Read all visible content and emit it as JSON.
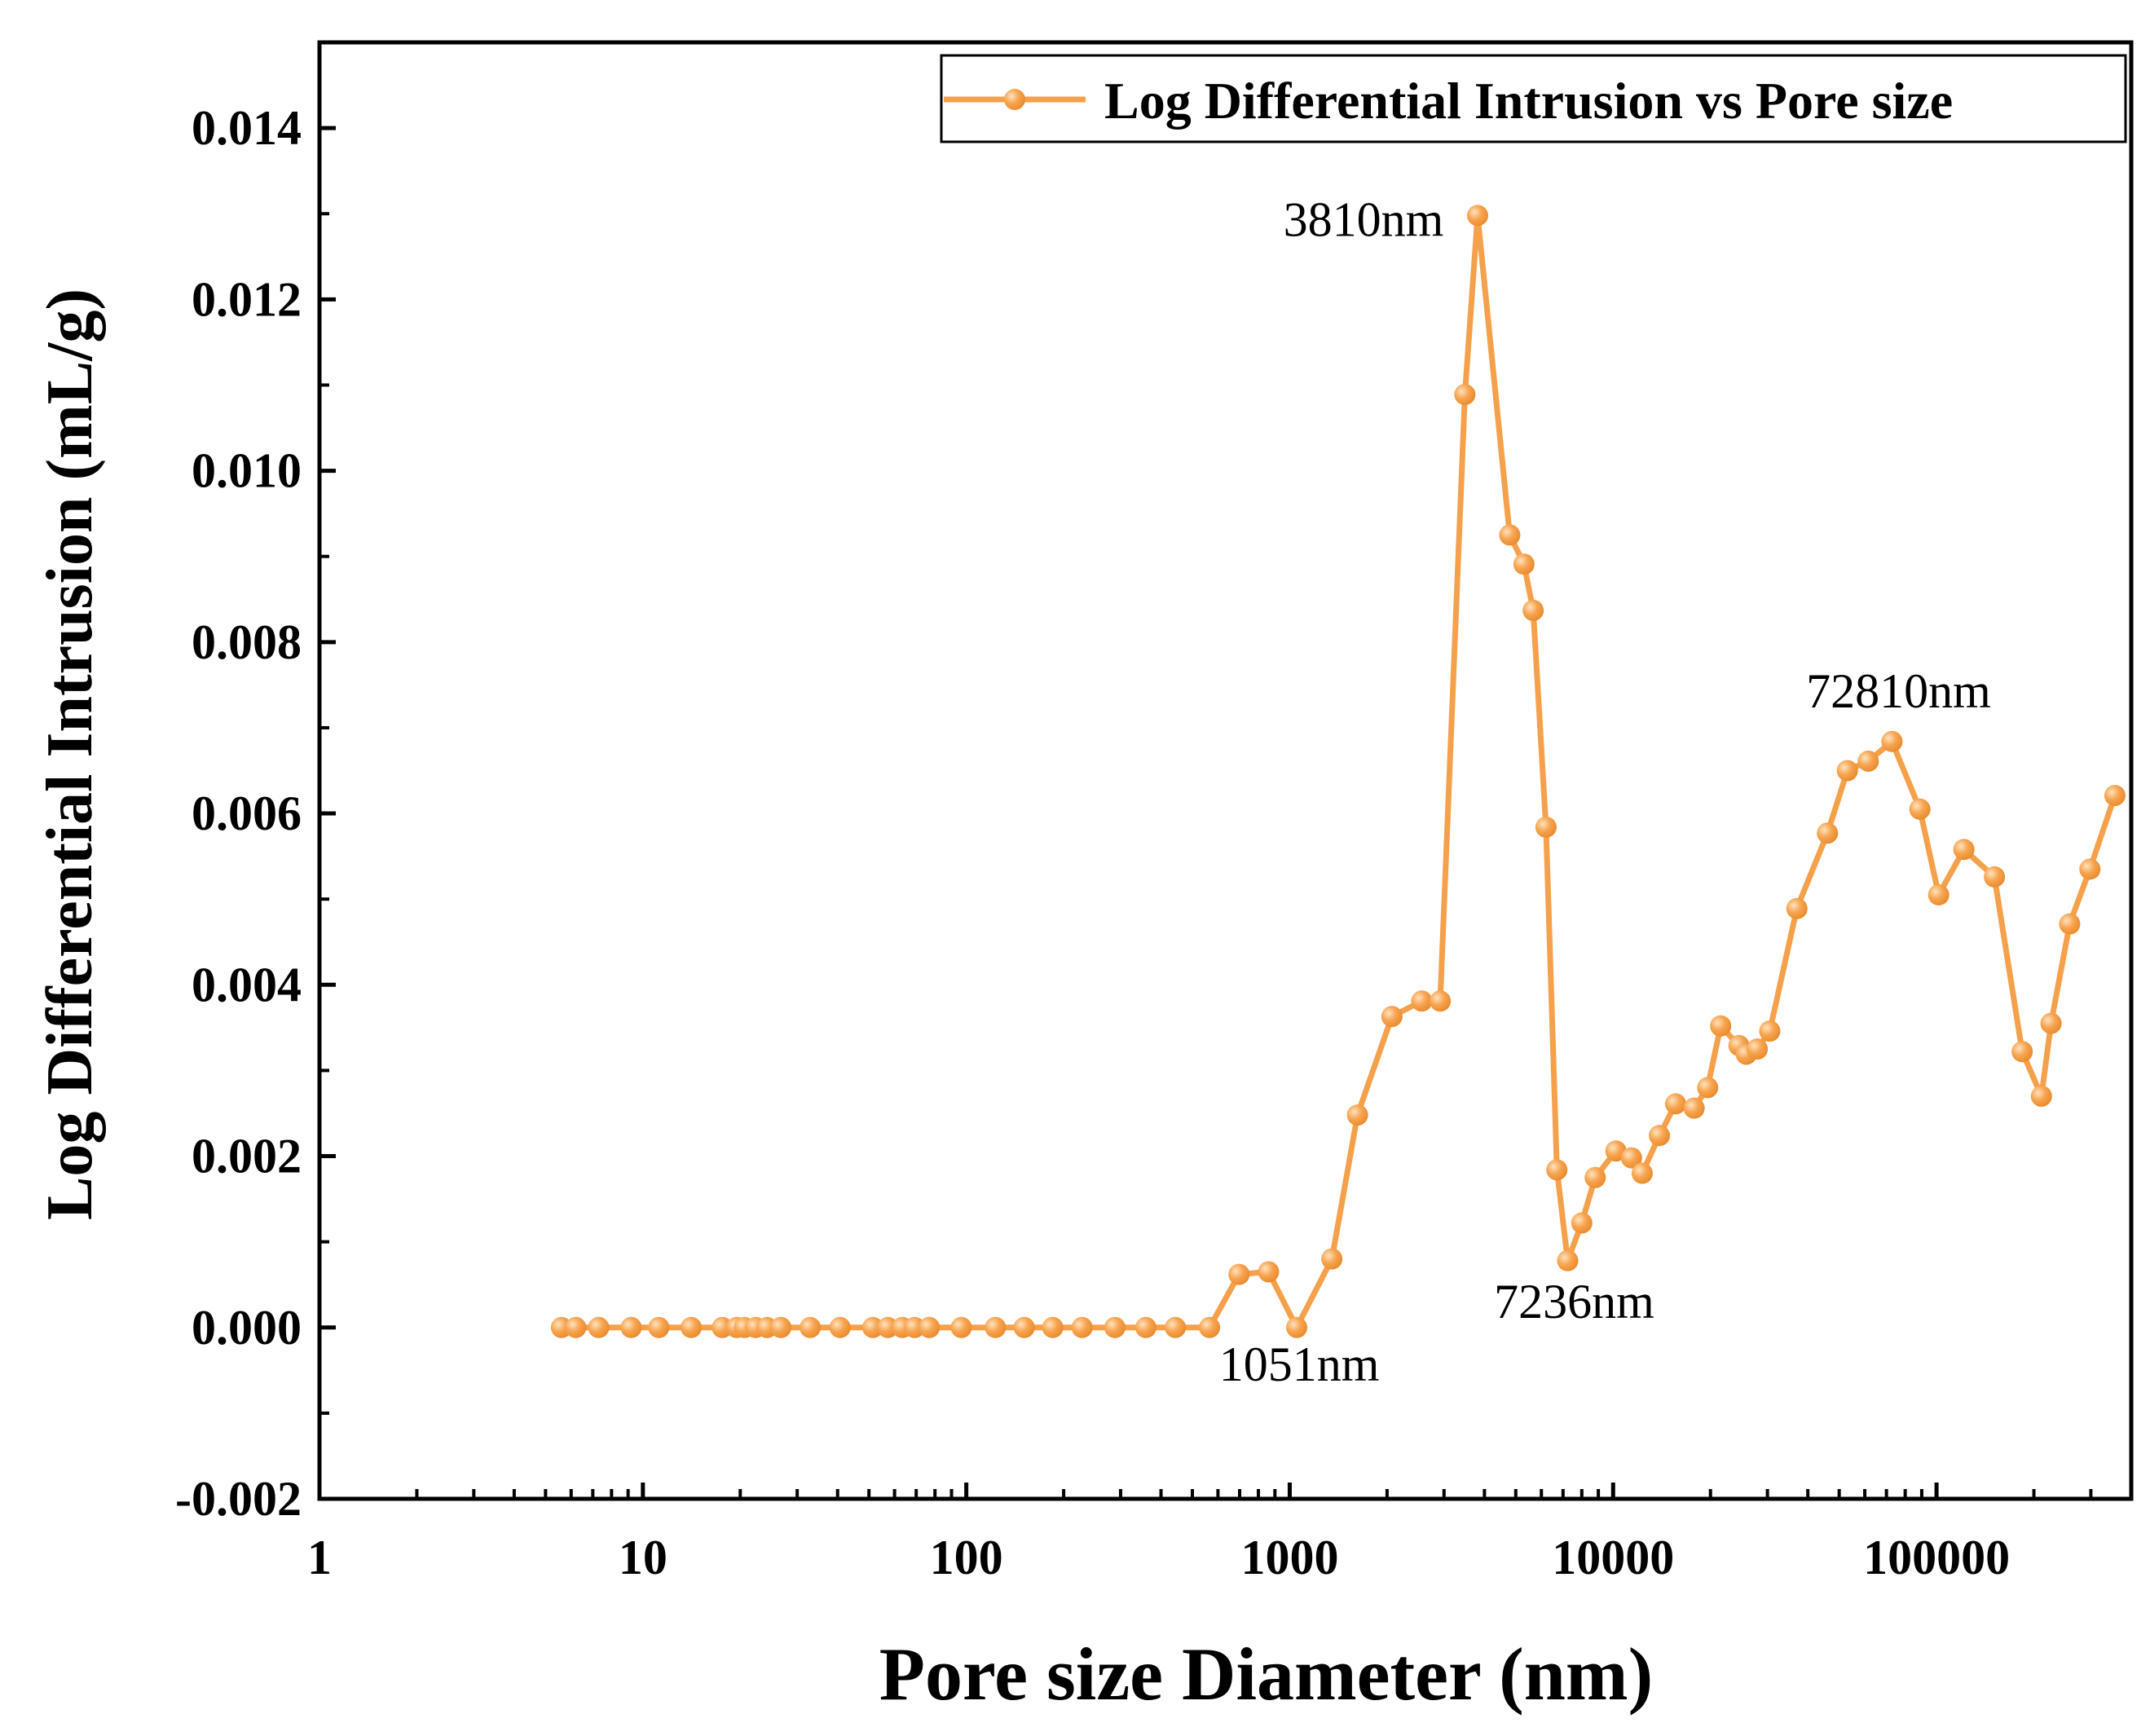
{
  "chart_data": {
    "type": "line",
    "title": "",
    "xlabel": "Pore size Diameter (nm)",
    "ylabel": "Log Differential Intrusion (mL/g)",
    "xscale": "log",
    "xlim": [
      1,
      400000
    ],
    "ylim": [
      -0.002,
      0.015
    ],
    "x_ticks": [
      1,
      10,
      100,
      1000,
      10000,
      100000
    ],
    "x_tick_labels": [
      "1",
      "10",
      "100",
      "1000",
      "10000",
      "100000"
    ],
    "y_ticks": [
      -0.002,
      0.0,
      0.002,
      0.004,
      0.006,
      0.008,
      0.01,
      0.012,
      0.014
    ],
    "y_tick_labels": [
      "-0.002",
      "0.000",
      "0.002",
      "0.004",
      "0.006",
      "0.008",
      "0.010",
      "0.012",
      "0.014"
    ],
    "legend": {
      "position": "top-right",
      "entries": [
        "Log Differential Intrusion vs Pore size"
      ]
    },
    "colors": {
      "series": "#f5a04a",
      "marker_fill": "#f7a450",
      "axis": "#000000"
    },
    "series": [
      {
        "name": "Log Differential Intrusion vs Pore size",
        "x": [
          5.6,
          6.2,
          7.3,
          9.2,
          11.2,
          14.1,
          17.6,
          19.5,
          20.6,
          22.3,
          24.2,
          26.7,
          32.9,
          40.7,
          51.4,
          57.2,
          63.4,
          69.2,
          76.8,
          96.5,
          123,
          151,
          185,
          228,
          288,
          359,
          443,
          565,
          697,
          860,
          1051,
          1350,
          1620,
          2070,
          2560,
          2920,
          3480,
          3810,
          4790,
          5300,
          5660,
          6200,
          6700,
          7236,
          8000,
          8800,
          10200,
          11400,
          12300,
          13900,
          15600,
          17800,
          19600,
          21500,
          24500,
          25800,
          27900,
          30500,
          37000,
          46000,
          53000,
          61500,
          72810,
          88800,
          101500,
          121500,
          151000,
          184000,
          211000,
          226000,
          258000,
          298000,
          356000
        ],
        "y": [
          0.0,
          0.0,
          0.0,
          0.0,
          0.0,
          0.0,
          0.0,
          0.0,
          0.0,
          0.0,
          0.0,
          0.0,
          0.0,
          0.0,
          0.0,
          0.0,
          0.0,
          0.0,
          0.0,
          0.0,
          0.0,
          0.0,
          0.0,
          0.0,
          0.0,
          0.0,
          0.0,
          0.0,
          0.00062,
          0.00065,
          0.0,
          0.0008,
          0.00248,
          0.00363,
          0.00381,
          0.00381,
          0.01089,
          0.01298,
          0.00925,
          0.00891,
          0.00837,
          0.00584,
          0.00184,
          0.00078,
          0.00122,
          0.00175,
          0.00206,
          0.00198,
          0.0018,
          0.00224,
          0.00261,
          0.00256,
          0.0028,
          0.00352,
          0.00329,
          0.00319,
          0.00325,
          0.00346,
          0.00489,
          0.00577,
          0.0065,
          0.00661,
          0.00684,
          0.00605,
          0.00505,
          0.00558,
          0.00526,
          0.00322,
          0.0027,
          0.00355,
          0.00471,
          0.00535,
          0.00621
        ]
      }
    ],
    "annotations": [
      {
        "text": "3810nm",
        "x": 3810,
        "y": 0.01298
      },
      {
        "text": "72810nm",
        "x": 72810,
        "y": 0.00684
      },
      {
        "text": "1051nm",
        "x": 1051,
        "y": 0.0
      },
      {
        "text": "7236nm",
        "x": 7236,
        "y": 0.00078
      }
    ]
  }
}
